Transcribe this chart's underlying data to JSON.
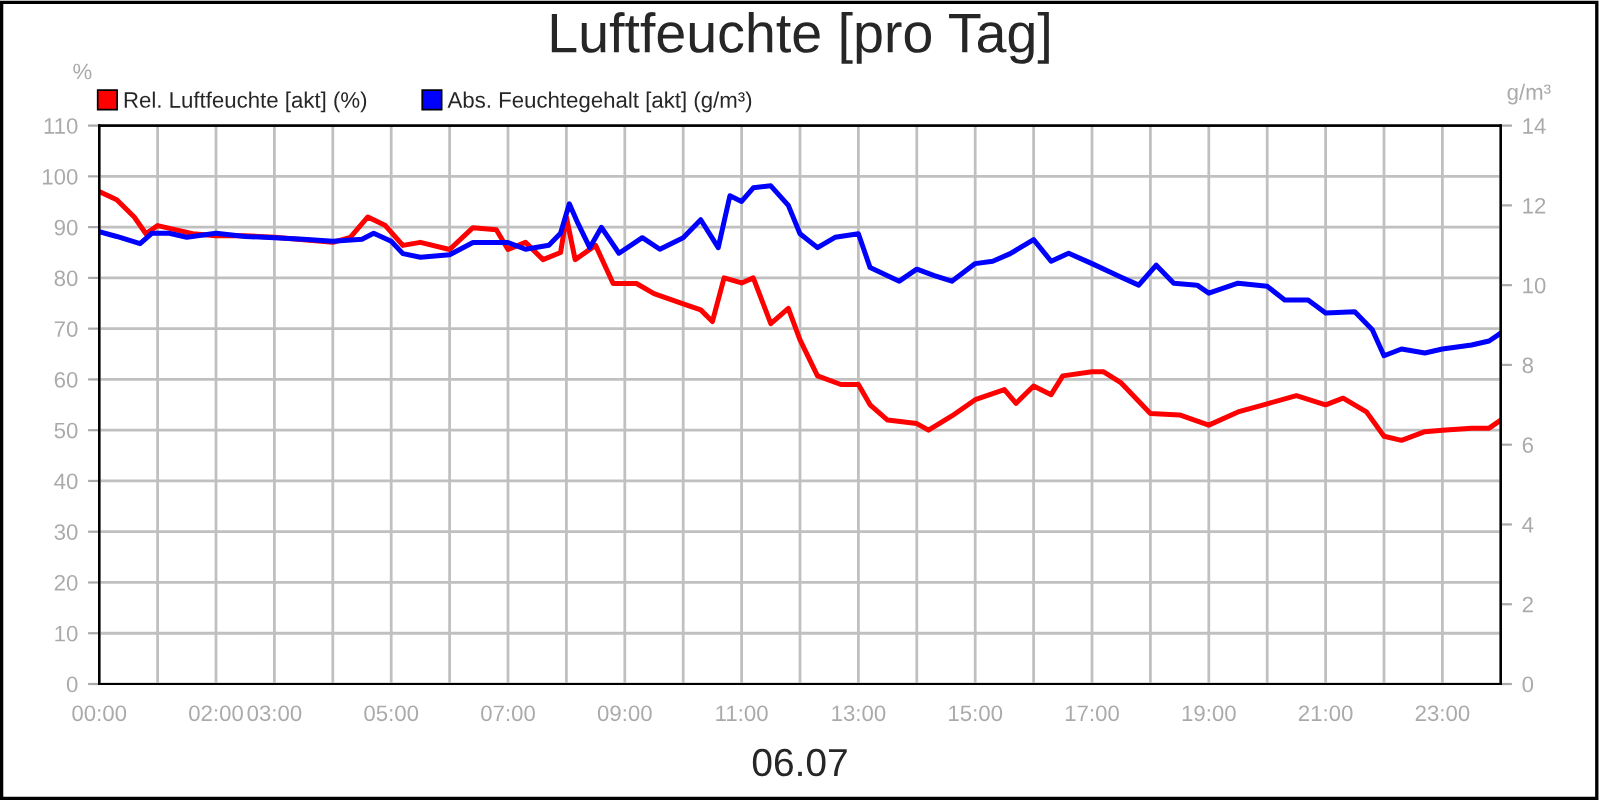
{
  "chart_data": {
    "type": "line",
    "title": "Luftfeuchte [pro Tag]",
    "xlabel": "06.07",
    "ylabel": "%",
    "y2label": "g/m³",
    "series": [
      {
        "name": "Rel. Luftfeuchte [akt] (%)",
        "color": "#ff0000",
        "x": [
          0,
          0.3,
          0.6,
          0.8,
          1.0,
          1.3,
          1.6,
          2,
          2.5,
          3,
          3.5,
          4,
          4.3,
          4.6,
          4.9,
          5.2,
          5.5,
          6,
          6.4,
          6.8,
          7.0,
          7.3,
          7.6,
          7.9,
          8.0,
          8.15,
          8.5,
          8.8,
          9.2,
          9.5,
          10,
          10.3,
          10.5,
          10.7,
          11,
          11.2,
          11.5,
          11.8,
          12,
          12.3,
          12.7,
          13,
          13.2,
          13.5,
          14,
          14.2,
          14.6,
          15,
          15.5,
          15.7,
          16,
          16.3,
          16.5,
          17,
          17.2,
          17.5,
          18,
          18.5,
          19,
          19.5,
          20,
          20.5,
          21,
          21.3,
          21.7,
          22,
          22.3,
          22.7,
          23,
          23.5,
          23.8,
          24
        ],
        "values": [
          97,
          95.4,
          92,
          88.7,
          90.3,
          89.5,
          88.7,
          88.3,
          88.3,
          88,
          87.5,
          87,
          88,
          92,
          90.3,
          86.4,
          87,
          85.6,
          89.9,
          89.5,
          85.6,
          87,
          83.6,
          85,
          92,
          83.6,
          86.4,
          78.9,
          78.9,
          76.9,
          74.9,
          73.7,
          71.4,
          80,
          79,
          80,
          71,
          74,
          67.8,
          60.7,
          59,
          59,
          55,
          52,
          51.3,
          50,
          52.8,
          56,
          58,
          55.3,
          58.7,
          57,
          60.7,
          61.5,
          61.5,
          59.3,
          53.3,
          53,
          51,
          53.6,
          55.2,
          56.8,
          55,
          56.3,
          53.6,
          48.8,
          48,
          49.7,
          50,
          50.4,
          50.4,
          52
        ]
      },
      {
        "name": "Abs. Feuchtegehalt [akt] (g/m³)",
        "color": "#0000ff",
        "axis": "y2",
        "x": [
          0,
          0.3,
          0.7,
          0.9,
          1.2,
          1.5,
          2,
          2.5,
          3,
          3.5,
          4,
          4.5,
          4.7,
          5.0,
          5.2,
          5.5,
          6,
          6.4,
          7,
          7.3,
          7.7,
          7.9,
          8.05,
          8.2,
          8.4,
          8.6,
          8.9,
          9.3,
          9.6,
          10,
          10.3,
          10.6,
          10.8,
          11,
          11.2,
          11.5,
          11.8,
          12.0,
          12.3,
          12.6,
          13,
          13.2,
          13.7,
          14,
          14.3,
          14.6,
          15,
          15.3,
          15.6,
          16,
          16.3,
          16.6,
          17,
          17.5,
          17.8,
          18.1,
          18.4,
          18.8,
          19,
          19.5,
          20,
          20.3,
          20.7,
          21,
          21.5,
          21.8,
          22,
          22.3,
          22.7,
          23,
          23.5,
          23.8,
          24
        ],
        "values": [
          11.34,
          11.22,
          11.04,
          11.3,
          11.3,
          11.2,
          11.3,
          11.22,
          11.19,
          11.15,
          11.1,
          11.15,
          11.3,
          11.1,
          10.79,
          10.7,
          10.76,
          11.07,
          11.07,
          10.9,
          11,
          11.3,
          12.04,
          11.54,
          10.94,
          11.45,
          10.8,
          11.19,
          10.9,
          11.19,
          11.64,
          10.94,
          12.24,
          12.1,
          12.44,
          12.49,
          12.0,
          11.29,
          10.94,
          11.2,
          11.29,
          10.44,
          10.1,
          10.4,
          10.24,
          10.1,
          10.54,
          10.6,
          10.79,
          11.14,
          10.6,
          10.8,
          10.54,
          10.2,
          10,
          10.5,
          10.05,
          10.0,
          9.8,
          10.05,
          9.97,
          9.63,
          9.63,
          9.3,
          9.33,
          8.88,
          8.23,
          8.4,
          8.3,
          8.4,
          8.5,
          8.6,
          8.8
        ]
      }
    ],
    "xlim": [
      0,
      24
    ],
    "xticks": [
      {
        "value": 0,
        "label": "00:00"
      },
      {
        "value": 1,
        "label": null
      },
      {
        "value": 2,
        "label": "02:00"
      },
      {
        "value": 3,
        "label": "03:00"
      },
      {
        "value": 4,
        "label": null
      },
      {
        "value": 5,
        "label": "05:00"
      },
      {
        "value": 6,
        "label": null
      },
      {
        "value": 7,
        "label": "07:00"
      },
      {
        "value": 8,
        "label": null
      },
      {
        "value": 9,
        "label": "09:00"
      },
      {
        "value": 10,
        "label": null
      },
      {
        "value": 11,
        "label": "11:00"
      },
      {
        "value": 12,
        "label": null
      },
      {
        "value": 13,
        "label": "13:00"
      },
      {
        "value": 14,
        "label": null
      },
      {
        "value": 15,
        "label": "15:00"
      },
      {
        "value": 16,
        "label": null
      },
      {
        "value": 17,
        "label": "17:00"
      },
      {
        "value": 18,
        "label": null
      },
      {
        "value": 19,
        "label": "19:00"
      },
      {
        "value": 20,
        "label": null
      },
      {
        "value": 21,
        "label": "21:00"
      },
      {
        "value": 22,
        "label": null
      },
      {
        "value": 23,
        "label": "23:00"
      },
      {
        "value": 24,
        "label": null
      }
    ],
    "ylim": [
      0,
      110
    ],
    "yticks": [
      0,
      10,
      20,
      30,
      40,
      50,
      60,
      70,
      80,
      90,
      100,
      110
    ],
    "y2lim": [
      0,
      14
    ],
    "y2ticks": [
      0,
      2,
      4,
      6,
      8,
      10,
      12,
      14
    ],
    "grid": true,
    "legend": "top left",
    "line_style": "solid",
    "marker": "none"
  }
}
